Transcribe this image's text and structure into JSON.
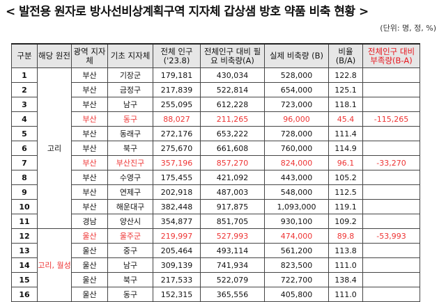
{
  "title": "< 발전용 원자로 방사선비상계획구역 지자체 갑상샘 방호 약품 비축 현황 >",
  "unit": "(단위: 명, 정, %)",
  "headers": {
    "no": "구분",
    "plant": "해당 원전",
    "metro": "광역 지자체",
    "local": "기초 지자체",
    "pop": "전체 인구 ('23.8)",
    "need": "전체인구 대비 필요 비축량(A)",
    "stock": "실제 비축량 (B)",
    "ratio": "비율 (B/A)",
    "short": "전체인구 대비 부족량(B-A)"
  },
  "groups": [
    {
      "plant": "고리"
    },
    {
      "plant": "고리, 월성"
    }
  ],
  "rows": [
    {
      "no": "1",
      "metro": "부산",
      "local": "기장군",
      "pop": "179,181",
      "need": "430,034",
      "stock": "528,000",
      "ratio": "122.8",
      "short": "",
      "red": false
    },
    {
      "no": "2",
      "metro": "부산",
      "local": "금정구",
      "pop": "217,839",
      "need": "522,814",
      "stock": "654,000",
      "ratio": "125.1",
      "short": "",
      "red": false
    },
    {
      "no": "3",
      "metro": "부산",
      "local": "남구",
      "pop": "255,095",
      "need": "612,228",
      "stock": "723,000",
      "ratio": "118.1",
      "short": "",
      "red": false
    },
    {
      "no": "4",
      "metro": "부산",
      "local": "동구",
      "pop": "88,027",
      "need": "211,265",
      "stock": "96,000",
      "ratio": "45.4",
      "short": "-115,265",
      "red": true
    },
    {
      "no": "5",
      "metro": "부산",
      "local": "동래구",
      "pop": "272,176",
      "need": "653,222",
      "stock": "728,000",
      "ratio": "111.4",
      "short": "",
      "red": false
    },
    {
      "no": "6",
      "metro": "부산",
      "local": "북구",
      "pop": "275,670",
      "need": "661,608",
      "stock": "760,000",
      "ratio": "114.9",
      "short": "",
      "red": false
    },
    {
      "no": "7",
      "metro": "부산",
      "local": "부산진구",
      "pop": "357,196",
      "need": "857,270",
      "stock": "824,000",
      "ratio": "96.1",
      "short": "-33,270",
      "red": true
    },
    {
      "no": "8",
      "metro": "부산",
      "local": "수영구",
      "pop": "175,455",
      "need": "421,092",
      "stock": "443,000",
      "ratio": "105.2",
      "short": "",
      "red": false
    },
    {
      "no": "9",
      "metro": "부산",
      "local": "연제구",
      "pop": "202,918",
      "need": "487,003",
      "stock": "548,000",
      "ratio": "112.5",
      "short": "",
      "red": false
    },
    {
      "no": "10",
      "metro": "부산",
      "local": "해운대구",
      "pop": "382,448",
      "need": "917,875",
      "stock": "1,093,000",
      "ratio": "119.1",
      "short": "",
      "red": false
    },
    {
      "no": "11",
      "metro": "경남",
      "local": "양산시",
      "pop": "354,877",
      "need": "851,705",
      "stock": "930,100",
      "ratio": "109.2",
      "short": "",
      "red": false
    },
    {
      "no": "12",
      "metro": "울산",
      "local": "울주군",
      "pop": "219,997",
      "need": "527,993",
      "stock": "474,000",
      "ratio": "89.8",
      "short": "-53,993",
      "red": true
    },
    {
      "no": "13",
      "metro": "울산",
      "local": "중구",
      "pop": "205,464",
      "need": "493,114",
      "stock": "561,200",
      "ratio": "113.8",
      "short": "",
      "red": false
    },
    {
      "no": "14",
      "metro": "울산",
      "local": "남구",
      "pop": "309,139",
      "need": "741,934",
      "stock": "823,500",
      "ratio": "111.0",
      "short": "",
      "red": false
    },
    {
      "no": "15",
      "metro": "울산",
      "local": "북구",
      "pop": "217,533",
      "need": "522,079",
      "stock": "722,700",
      "ratio": "138.4",
      "short": "",
      "red": false
    },
    {
      "no": "16",
      "metro": "울산",
      "local": "동구",
      "pop": "152,315",
      "need": "365,556",
      "stock": "405,800",
      "ratio": "111.0",
      "short": "",
      "red": false
    }
  ]
}
